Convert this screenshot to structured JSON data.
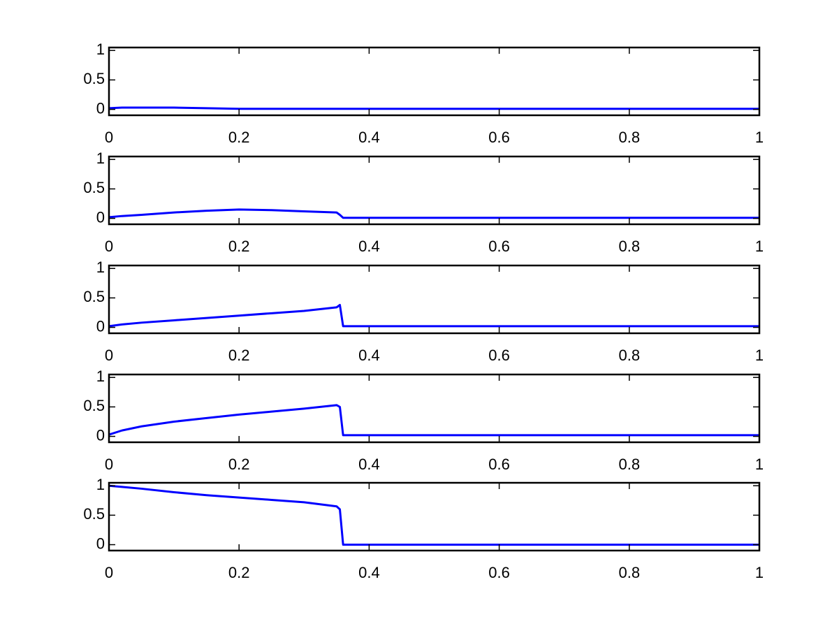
{
  "chart_data": [
    {
      "type": "line",
      "x": [
        0,
        0.02,
        0.05,
        0.1,
        0.15,
        0.2,
        0.25,
        0.3,
        0.35,
        0.355,
        0.36,
        0.4,
        0.5,
        0.6,
        0.7,
        0.8,
        0.9,
        1
      ],
      "values": [
        0.02,
        0.03,
        0.03,
        0.03,
        0.02,
        0.01,
        0.01,
        0.01,
        0.01,
        0.01,
        0.01,
        0.01,
        0.01,
        0.01,
        0.01,
        0.01,
        0.01,
        0.01
      ],
      "color": "#0000ff",
      "xlim": [
        0,
        1
      ],
      "ylim": [
        -0.1,
        1.05
      ],
      "xticks": [
        0,
        0.2,
        0.4,
        0.6,
        0.8,
        1
      ],
      "yticks": [
        0,
        0.5,
        1
      ]
    },
    {
      "type": "line",
      "x": [
        0,
        0.02,
        0.05,
        0.1,
        0.15,
        0.2,
        0.25,
        0.3,
        0.35,
        0.355,
        0.36,
        0.4,
        0.5,
        0.6,
        0.7,
        0.8,
        0.9,
        1
      ],
      "values": [
        0.02,
        0.04,
        0.06,
        0.1,
        0.13,
        0.15,
        0.14,
        0.12,
        0.1,
        0.06,
        0.01,
        0.01,
        0.01,
        0.01,
        0.01,
        0.01,
        0.01,
        0.01
      ],
      "color": "#0000ff",
      "xlim": [
        0,
        1
      ],
      "ylim": [
        -0.1,
        1.05
      ],
      "xticks": [
        0,
        0.2,
        0.4,
        0.6,
        0.8,
        1
      ],
      "yticks": [
        0,
        0.5,
        1
      ]
    },
    {
      "type": "line",
      "x": [
        0,
        0.02,
        0.05,
        0.1,
        0.15,
        0.2,
        0.25,
        0.3,
        0.35,
        0.355,
        0.36,
        0.4,
        0.5,
        0.6,
        0.7,
        0.8,
        0.9,
        1
      ],
      "values": [
        0.02,
        0.05,
        0.08,
        0.12,
        0.16,
        0.2,
        0.24,
        0.28,
        0.34,
        0.38,
        0.02,
        0.02,
        0.02,
        0.02,
        0.02,
        0.02,
        0.02,
        0.02
      ],
      "color": "#0000ff",
      "xlim": [
        0,
        1
      ],
      "ylim": [
        -0.1,
        1.05
      ],
      "xticks": [
        0,
        0.2,
        0.4,
        0.6,
        0.8,
        1
      ],
      "yticks": [
        0,
        0.5,
        1
      ]
    },
    {
      "type": "line",
      "x": [
        0,
        0.02,
        0.05,
        0.1,
        0.15,
        0.2,
        0.25,
        0.3,
        0.35,
        0.355,
        0.36,
        0.4,
        0.5,
        0.6,
        0.7,
        0.8,
        0.9,
        1
      ],
      "values": [
        0.03,
        0.1,
        0.17,
        0.25,
        0.31,
        0.37,
        0.42,
        0.47,
        0.53,
        0.5,
        0.02,
        0.02,
        0.02,
        0.02,
        0.02,
        0.02,
        0.02,
        0.02
      ],
      "color": "#0000ff",
      "xlim": [
        0,
        1
      ],
      "ylim": [
        -0.1,
        1.05
      ],
      "xticks": [
        0,
        0.2,
        0.4,
        0.6,
        0.8,
        1
      ],
      "yticks": [
        0,
        0.5,
        1
      ]
    },
    {
      "type": "line",
      "x": [
        0,
        0.02,
        0.05,
        0.1,
        0.15,
        0.2,
        0.25,
        0.3,
        0.35,
        0.355,
        0.36,
        0.4,
        0.5,
        0.6,
        0.7,
        0.8,
        0.9,
        1
      ],
      "values": [
        1,
        0.98,
        0.95,
        0.89,
        0.84,
        0.8,
        0.76,
        0.72,
        0.65,
        0.6,
        0,
        0,
        0,
        0,
        0,
        0,
        0,
        0
      ],
      "color": "#0000ff",
      "xlim": [
        0,
        1
      ],
      "ylim": [
        -0.1,
        1.05
      ],
      "xticks": [
        0,
        0.2,
        0.4,
        0.6,
        0.8,
        1
      ],
      "yticks": [
        0,
        0.5,
        1
      ]
    }
  ]
}
